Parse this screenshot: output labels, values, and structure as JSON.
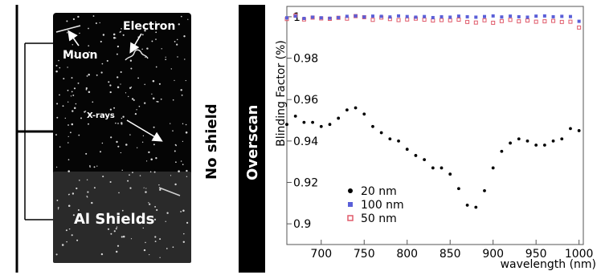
{
  "ccd_image": {
    "labels": {
      "muon": "Muon",
      "electron": "Electron",
      "xrays": "X-rays",
      "no_shield": "No shield",
      "overscan": "Overscan",
      "al_shields": "Al Shields"
    },
    "colors": {
      "background": "#ffffff",
      "sensor_dark": "#050505",
      "sensor_shielded": "#2a2a2a",
      "overscan_bar": "#000000",
      "label_text": "#ffffff",
      "outer_text": "#000000"
    }
  },
  "chart_data": {
    "type": "scatter",
    "xlabel": "wavelength (nm)",
    "ylabel": "Blinding Factor (%)",
    "xlim": [
      660,
      1005
    ],
    "ylim": [
      0.89,
      1.005
    ],
    "xticks": [
      700,
      750,
      800,
      850,
      900,
      950,
      1000
    ],
    "yticks": [
      0.9,
      0.92,
      0.94,
      0.96,
      0.98,
      1
    ],
    "ytick_labels": [
      "0.9",
      "0.92",
      "0.94",
      "0.96",
      "0.98",
      "1"
    ],
    "grid": false,
    "legend_position": "bottom-left",
    "series": [
      {
        "name": "20 nm",
        "color": "#000000",
        "marker": "circle",
        "x": [
          660,
          670,
          680,
          690,
          700,
          710,
          720,
          730,
          740,
          750,
          760,
          770,
          780,
          790,
          800,
          810,
          820,
          830,
          840,
          850,
          860,
          870,
          880,
          890,
          900,
          910,
          920,
          930,
          940,
          950,
          960,
          970,
          980,
          990,
          1000
        ],
        "values": [
          0.948,
          0.952,
          0.949,
          0.949,
          0.947,
          0.948,
          0.951,
          0.955,
          0.956,
          0.953,
          0.947,
          0.944,
          0.941,
          0.94,
          0.936,
          0.933,
          0.931,
          0.927,
          0.927,
          0.924,
          0.917,
          0.909,
          0.908,
          0.916,
          0.927,
          0.935,
          0.939,
          0.941,
          0.94,
          0.938,
          0.938,
          0.94,
          0.941,
          0.946,
          0.945
        ]
      },
      {
        "name": "100 nm",
        "color": "#5a5fd8",
        "marker": "square",
        "x": [
          660,
          670,
          680,
          690,
          700,
          710,
          720,
          730,
          740,
          750,
          760,
          770,
          780,
          790,
          800,
          810,
          820,
          830,
          840,
          850,
          860,
          870,
          880,
          890,
          900,
          910,
          920,
          930,
          940,
          950,
          960,
          970,
          980,
          990,
          1000
        ],
        "values": [
          0.9995,
          1.0003,
          0.9992,
          0.9998,
          0.9995,
          0.9993,
          0.9996,
          1.0002,
          1.0004,
          0.9999,
          1.0003,
          1.0002,
          0.9999,
          1.0004,
          1.0001,
          0.9998,
          1.0001,
          0.9996,
          1.0,
          0.9998,
          1.0003,
          1.0,
          0.9998,
          1.0001,
          1.0004,
          0.9999,
          1.0003,
          1.0,
          0.9998,
          1.0003,
          1.0004,
          1.0,
          1.0002,
          1.0001,
          0.9978
        ]
      },
      {
        "name": "50 nm",
        "color": "#e05a6a",
        "marker": "hollow-square",
        "x": [
          660,
          670,
          680,
          690,
          700,
          710,
          720,
          730,
          740,
          750,
          760,
          770,
          780,
          790,
          800,
          810,
          820,
          830,
          840,
          850,
          860,
          870,
          880,
          890,
          900,
          910,
          920,
          930,
          940,
          950,
          960,
          970,
          980,
          990,
          1000
        ],
        "values": [
          0.9989,
          1.0006,
          0.9987,
          0.9996,
          0.9992,
          0.999,
          0.9995,
          0.9991,
          1.0003,
          0.9998,
          0.9985,
          0.9996,
          0.9989,
          0.9984,
          0.9987,
          0.9991,
          0.9986,
          0.9982,
          0.9984,
          0.9983,
          0.9986,
          0.9975,
          0.9972,
          0.9983,
          0.9971,
          0.9979,
          0.9985,
          0.9978,
          0.9982,
          0.9976,
          0.9978,
          0.998,
          0.9975,
          0.9976,
          0.9948
        ]
      }
    ]
  }
}
